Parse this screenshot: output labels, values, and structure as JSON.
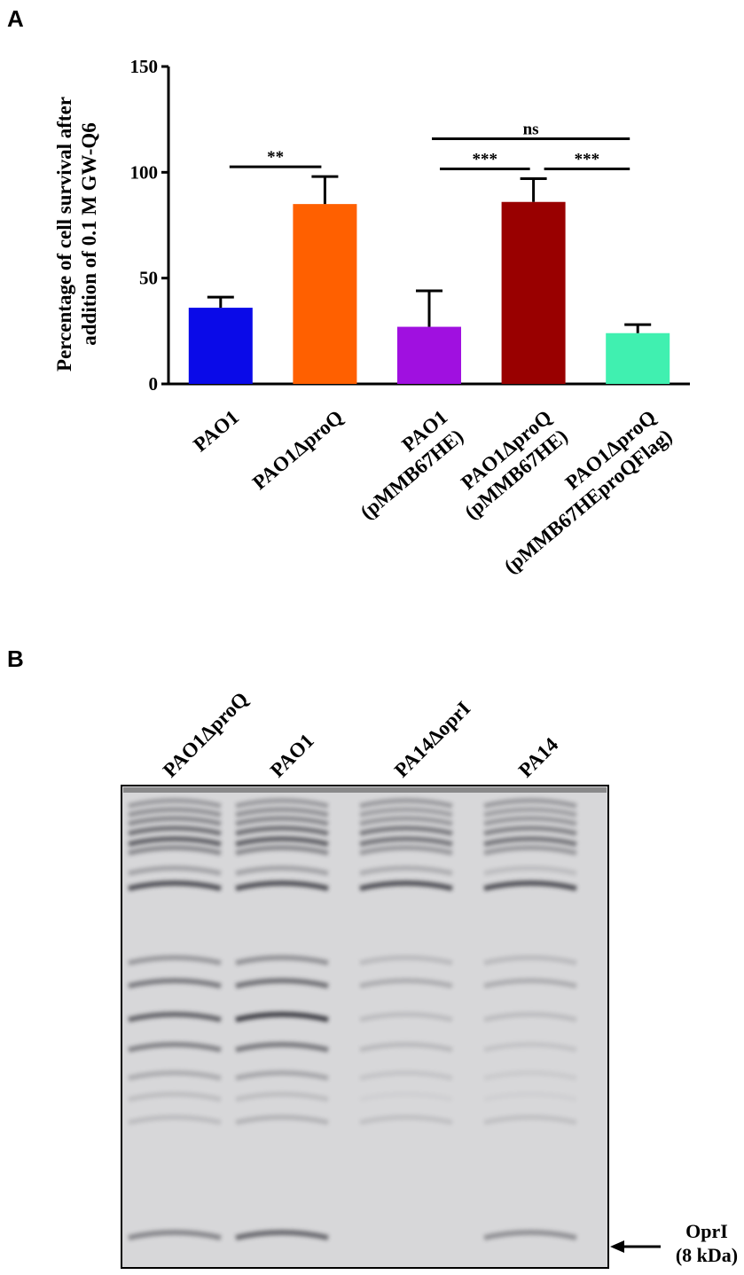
{
  "panel_labels": [
    "A",
    "B"
  ],
  "chart_data": {
    "type": "bar",
    "ylabel": [
      "Percentage of cell survival after",
      "addition of 0.1 M GW-Q6"
    ],
    "categories": [
      "PAO1",
      "PAO1ΔproQ",
      "PAO1\n(pMMB67HE)",
      "PAO1ΔproQ\n(pMMB67HE)",
      "PAO1ΔproQ\n(pMMB67HEproQFlag)"
    ],
    "values": [
      36,
      85,
      27,
      86,
      24
    ],
    "errors": [
      5,
      13,
      17,
      11,
      4
    ],
    "colors": [
      "#0a0ae8",
      "#ff6000",
      "#a010e0",
      "#990000",
      "#40f0b0"
    ],
    "ylim": [
      0,
      150
    ],
    "yticks": [
      0,
      50,
      100,
      150
    ],
    "grid": false,
    "annotations": [
      {
        "text": "**",
        "between": [
          0,
          1
        ]
      },
      {
        "text": "***",
        "between": [
          2,
          3
        ]
      },
      {
        "text": "***",
        "between": [
          3,
          4
        ]
      },
      {
        "text": "ns",
        "between": [
          2,
          4
        ]
      }
    ]
  },
  "gel": {
    "lanes": [
      "PAO1ΔproQ",
      "PAO1",
      "PA14ΔoprI",
      "PA14"
    ],
    "annotation": [
      "OprI",
      "(8 kDa)"
    ]
  }
}
